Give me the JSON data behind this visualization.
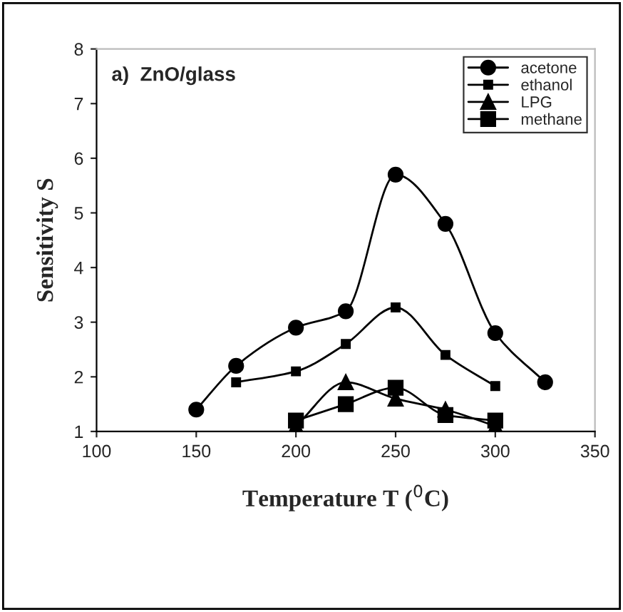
{
  "chart_data": {
    "type": "line",
    "title": "a)  ZnO/glass",
    "xlabel": "Temperature T ($^{0}$C)",
    "ylabel": "Sensitivity S",
    "xlim": [
      100,
      350
    ],
    "xticks": [
      100,
      150,
      200,
      250,
      300,
      350
    ],
    "ylim": [
      1,
      8
    ],
    "yticks": [
      1,
      2,
      3,
      4,
      5,
      6,
      7,
      8
    ],
    "grid": false,
    "legend": "top right",
    "line_style": "solid",
    "series": [
      {
        "name": "acetone",
        "color": "#000000",
        "marker": "circle",
        "x": [
          150,
          170,
          200,
          225,
          250,
          275,
          300,
          325
        ],
        "values": [
          1.4,
          2.2,
          2.9,
          3.2,
          5.7,
          4.8,
          2.8,
          1.9
        ]
      },
      {
        "name": "ethanol",
        "color": "#000000",
        "marker": "square",
        "x": [
          170,
          200,
          225,
          250,
          275,
          300
        ],
        "values": [
          1.9,
          2.1,
          2.6,
          3.27,
          2.4,
          1.83
        ]
      },
      {
        "name": "LPG",
        "color": "#000000",
        "marker": "triangle",
        "x": [
          200,
          225,
          250,
          275,
          300
        ],
        "values": [
          1.1,
          1.9,
          1.6,
          1.4,
          1.1
        ]
      },
      {
        "name": "methane",
        "color": "#000000",
        "marker": "square",
        "x": [
          200,
          225,
          250,
          275,
          300
        ],
        "values": [
          1.2,
          1.5,
          1.8,
          1.3,
          1.2
        ]
      }
    ]
  }
}
